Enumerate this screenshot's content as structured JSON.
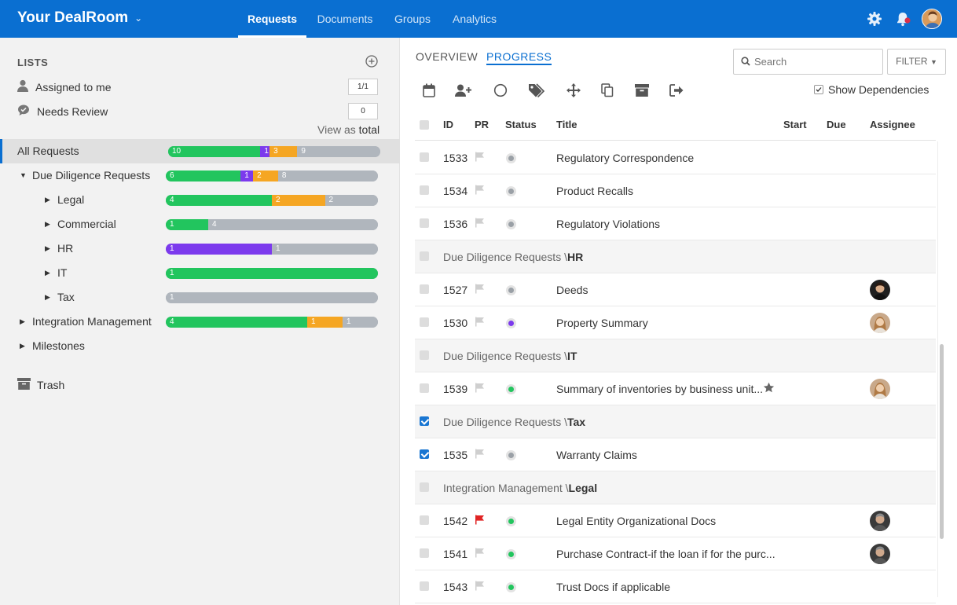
{
  "topbar": {
    "brand": "Your DealRoom",
    "tabs": [
      {
        "label": "Requests",
        "active": true
      },
      {
        "label": "Documents",
        "active": false
      },
      {
        "label": "Groups",
        "active": false
      },
      {
        "label": "Analytics",
        "active": false
      }
    ],
    "icons": [
      "gear-icon",
      "bell-icon",
      "avatar"
    ]
  },
  "sidebar": {
    "lists_title": "LISTS",
    "lists": [
      {
        "label": "Assigned to me",
        "count": "1/1",
        "icon": "user-icon"
      },
      {
        "label": "Needs Review",
        "count": "0",
        "icon": "check-bubble-icon"
      }
    ],
    "view_as_prefix": "View as",
    "view_as_value": "total",
    "tree": [
      {
        "label": "All Requests",
        "level": 0,
        "selected": true,
        "segments": [
          {
            "v": 10,
            "c": "green"
          },
          {
            "v": 1,
            "c": "purple"
          },
          {
            "v": 3,
            "c": "orange"
          },
          {
            "v": 9,
            "c": "gray"
          }
        ]
      },
      {
        "label": "Due Diligence Requests",
        "level": 1,
        "expanded": true,
        "segments": [
          {
            "v": 6,
            "c": "green"
          },
          {
            "v": 1,
            "c": "purple"
          },
          {
            "v": 2,
            "c": "orange"
          },
          {
            "v": 8,
            "c": "gray"
          }
        ]
      },
      {
        "label": "Legal",
        "level": 2,
        "segments": [
          {
            "v": 4,
            "c": "green"
          },
          {
            "v": 2,
            "c": "orange"
          },
          {
            "v": 2,
            "c": "gray"
          }
        ]
      },
      {
        "label": "Commercial",
        "level": 2,
        "segments": [
          {
            "v": 1,
            "c": "green"
          },
          {
            "v": 4,
            "c": "gray"
          }
        ]
      },
      {
        "label": "HR",
        "level": 2,
        "segments": [
          {
            "v": 1,
            "c": "purple"
          },
          {
            "v": 1,
            "c": "gray"
          }
        ]
      },
      {
        "label": "IT",
        "level": 2,
        "segments": [
          {
            "v": 1,
            "c": "green"
          }
        ]
      },
      {
        "label": "Tax",
        "level": 2,
        "segments": [
          {
            "v": 1,
            "c": "gray"
          }
        ]
      },
      {
        "label": "Integration Management",
        "level": 1,
        "segments": [
          {
            "v": 4,
            "c": "green"
          },
          {
            "v": 1,
            "c": "orange"
          },
          {
            "v": 1,
            "c": "gray"
          }
        ]
      },
      {
        "label": "Milestones",
        "level": 1,
        "segments": []
      }
    ],
    "trash_label": "Trash"
  },
  "main": {
    "tabs": [
      {
        "label": "OVERVIEW",
        "active": false
      },
      {
        "label": "PROGRESS",
        "active": true
      }
    ],
    "search_placeholder": "Search",
    "filter_label": "FILTER",
    "toolbar_icons": [
      "calendar-icon",
      "add-user-icon",
      "status-circle-icon",
      "tags-icon",
      "move-icon",
      "copy-icon",
      "archive-icon",
      "export-icon"
    ],
    "show_dependencies_label": "Show Dependencies",
    "show_dependencies_checked": true,
    "columns": [
      "ID",
      "PR",
      "Status",
      "Title",
      "Start",
      "Due",
      "Assignee"
    ],
    "rows": [
      {
        "type": "item",
        "id": "1533",
        "flag": "gray",
        "status": "gray",
        "title": "Regulatory Correspondence"
      },
      {
        "type": "item",
        "id": "1534",
        "flag": "gray",
        "status": "gray",
        "title": "Product Recalls"
      },
      {
        "type": "item",
        "id": "1536",
        "flag": "gray",
        "status": "gray",
        "title": "Regulatory Violations"
      },
      {
        "type": "group",
        "prefix": "Due Diligence Requests \\",
        "name": "HR"
      },
      {
        "type": "item",
        "id": "1527",
        "flag": "gray",
        "status": "gray",
        "title": "Deeds",
        "assignee": "man"
      },
      {
        "type": "item",
        "id": "1530",
        "flag": "gray",
        "status": "purple",
        "title": "Property Summary",
        "assignee": "woman"
      },
      {
        "type": "group",
        "prefix": "Due Diligence Requests \\",
        "name": "IT"
      },
      {
        "type": "item",
        "id": "1539",
        "flag": "gray",
        "status": "green",
        "title": "Summary of inventories by business unit...",
        "star": true,
        "assignee": "woman"
      },
      {
        "type": "group",
        "prefix": "Due Diligence Requests \\",
        "name": "Tax",
        "checked": true
      },
      {
        "type": "item",
        "id": "1535",
        "flag": "gray",
        "status": "gray",
        "title": "Warranty Claims",
        "checked": true
      },
      {
        "type": "group",
        "prefix": "Integration Management \\",
        "name": "Legal"
      },
      {
        "type": "item",
        "id": "1542",
        "flag": "red",
        "status": "green",
        "title": "Legal Entity Organizational Docs",
        "assignee": "gray-man"
      },
      {
        "type": "item",
        "id": "1541",
        "flag": "gray",
        "status": "green",
        "title": "Purchase Contract-if the loan if for the purc...",
        "assignee": "gray-man"
      },
      {
        "type": "item",
        "id": "1543",
        "flag": "gray",
        "status": "green",
        "title": "Trust Docs if applicable"
      }
    ]
  },
  "colors": {
    "brand": "#0a6fd1",
    "green": "#22c55e",
    "purple": "#7c3aed",
    "orange": "#f5a623",
    "gray": "#b0b6bd",
    "red": "#e02424"
  }
}
